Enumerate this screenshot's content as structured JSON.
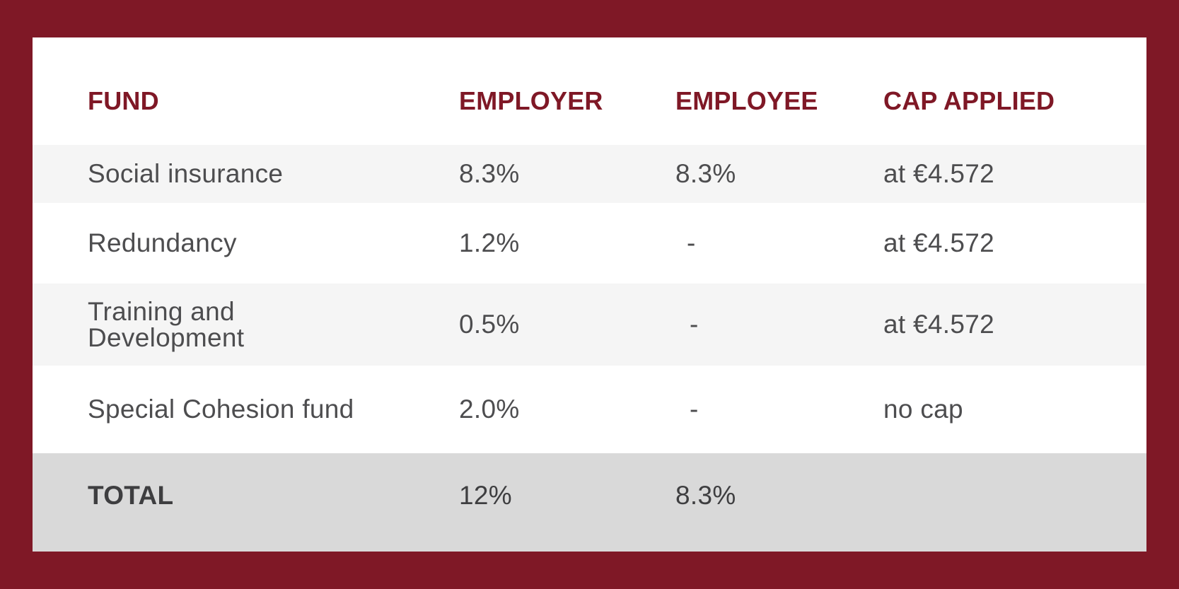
{
  "table": {
    "headers": {
      "fund": "FUND",
      "employer": "EMPLOYER",
      "employee": "EMPLOYEE",
      "cap": "CAP APPLIED"
    },
    "rows": [
      {
        "fund": "Social insurance",
        "employer": "8.3%",
        "employee": "8.3%",
        "cap": "at €4.572"
      },
      {
        "fund": "Redundancy",
        "employer": "1.2%",
        "employee": "-",
        "cap": "at €4.572"
      },
      {
        "fund_line1": "Training and",
        "fund_line2": "Development",
        "employer": "0.5%",
        "employee": "-",
        "cap": "at €4.572"
      },
      {
        "fund": "Special Cohesion fund",
        "employer": "2.0%",
        "employee": "-",
        "cap": "no cap"
      }
    ],
    "total": {
      "label": "TOTAL",
      "employer": "12%",
      "employee": "8.3%",
      "cap": ""
    }
  },
  "colors": {
    "frame": "#7f1826",
    "header_text": "#7f1826",
    "body_text": "#4d4d4f",
    "row_alt": "#f5f5f5",
    "total_bg": "#d9d9d9"
  }
}
